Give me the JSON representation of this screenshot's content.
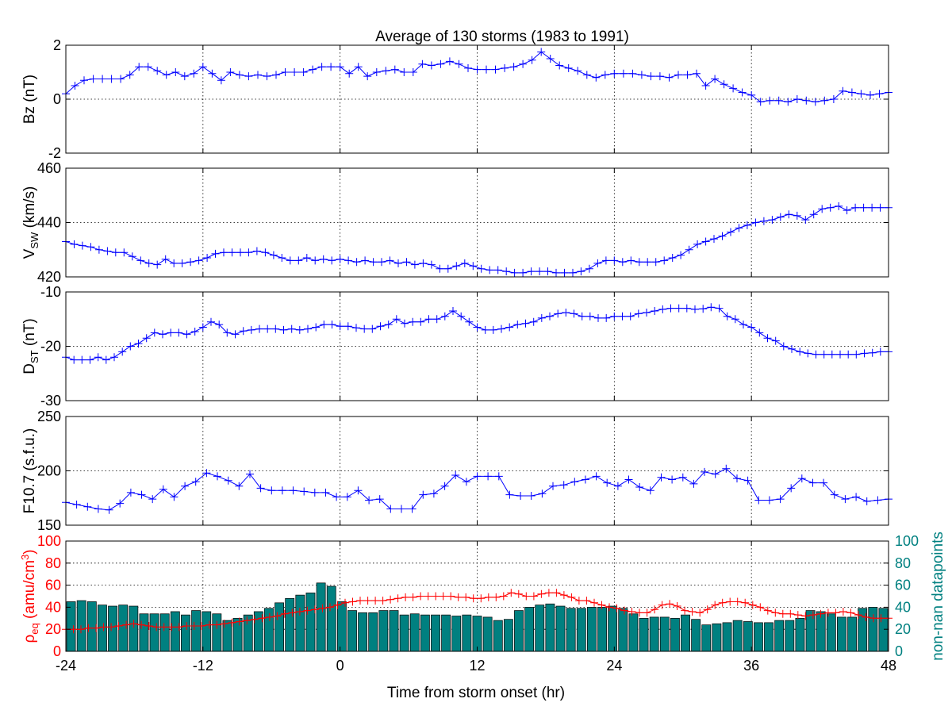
{
  "title": "Average of 130 storms  (1983 to 1991)",
  "xlabel": "Time from storm onset (hr)",
  "xticks": [
    -24,
    -12,
    0,
    12,
    24,
    36,
    48
  ],
  "colors": {
    "line": "#0000ff",
    "rho": "#ff0000",
    "bars": "#008080",
    "axis": "#000000",
    "grid": "#000000"
  },
  "chart_data": [
    {
      "type": "line",
      "ylabel": "Bz (nT)",
      "xlim": [
        -24,
        48
      ],
      "ylim": [
        -2,
        2
      ],
      "yticks": [
        -2,
        0,
        2
      ],
      "grid": true,
      "marker": "plus",
      "step_hr": 1,
      "x_start": -24,
      "values": [
        0.2,
        0.5,
        0.7,
        0.75,
        0.75,
        0.75,
        0.75,
        0.9,
        1.2,
        1.2,
        1.05,
        0.9,
        1.0,
        0.85,
        0.95,
        1.2,
        0.95,
        0.7,
        1.0,
        0.9,
        0.85,
        0.9,
        0.85,
        0.9,
        1.0,
        1.0,
        1.0,
        1.1,
        1.2,
        1.2,
        1.2,
        0.95,
        1.2,
        0.85,
        1.0,
        1.05,
        1.1,
        1.0,
        1.0,
        1.3,
        1.25,
        1.3,
        1.4,
        1.3,
        1.15,
        1.1,
        1.1,
        1.1,
        1.15,
        1.2,
        1.3,
        1.45,
        1.75,
        1.5,
        1.25,
        1.15,
        1.05,
        0.9,
        0.8,
        0.9,
        0.95,
        0.95,
        0.95,
        0.9,
        0.85,
        0.85,
        0.8,
        0.9,
        0.9,
        0.95,
        0.5,
        0.75,
        0.55,
        0.4,
        0.25,
        0.15,
        -0.1,
        -0.05,
        -0.05,
        -0.1,
        0.0,
        -0.05,
        -0.1,
        -0.05,
        0.0,
        0.3,
        0.25,
        0.2,
        0.15,
        0.2,
        0.25
      ]
    },
    {
      "type": "line",
      "ylabel": "V",
      "ylabel_sub": "SW",
      "ylabel_rest": " (km/s)",
      "xlim": [
        -24,
        48
      ],
      "ylim": [
        420,
        460
      ],
      "yticks": [
        420,
        440,
        460
      ],
      "grid": true,
      "marker": "plus",
      "step_hr": 1,
      "x_start": -24,
      "values": [
        433,
        432,
        431.5,
        431,
        430,
        429.5,
        429,
        429,
        427.5,
        426,
        425,
        424.5,
        426.5,
        425,
        425,
        425.5,
        426,
        427,
        428.5,
        429,
        429,
        429,
        429,
        429.5,
        429,
        428,
        427,
        426,
        426,
        427,
        426,
        426.5,
        426,
        426.5,
        426,
        425.5,
        426,
        425.5,
        425.5,
        426,
        425,
        425.5,
        424.5,
        425,
        424.5,
        423,
        423,
        424,
        425,
        424,
        423,
        422.5,
        422.5,
        422,
        421.5,
        421.5,
        422,
        422,
        422,
        421.5,
        421.5,
        421.5,
        422,
        423,
        425,
        426,
        426,
        425.5,
        426,
        425.5,
        425.5,
        425.5,
        426,
        427,
        428,
        430,
        432,
        433,
        434,
        435,
        436.5,
        438,
        439,
        440,
        440.5,
        441,
        442,
        443,
        442.5,
        441,
        443,
        445,
        445.5,
        446,
        444.5,
        445.5,
        445.5,
        445.5,
        445.5,
        445.5
      ]
    },
    {
      "type": "line",
      "ylabel": "D",
      "ylabel_sub": "ST",
      "ylabel_rest": " (nT)",
      "xlim": [
        -24,
        48
      ],
      "ylim": [
        -30,
        -10
      ],
      "yticks": [
        -30,
        -20,
        -10
      ],
      "grid": true,
      "marker": "plus",
      "step_hr": 1,
      "x_start": -24,
      "values": [
        -22,
        -22.5,
        -22.5,
        -22.5,
        -22,
        -22.5,
        -22,
        -21,
        -20,
        -19.5,
        -18.5,
        -17.5,
        -17.8,
        -17.5,
        -17.5,
        -17.8,
        -17.3,
        -16.5,
        -15.5,
        -16,
        -17.5,
        -17.8,
        -17.2,
        -17,
        -16.8,
        -16.8,
        -16.8,
        -17,
        -16.8,
        -17,
        -16.8,
        -16.5,
        -16,
        -16,
        -16.3,
        -16.3,
        -16.6,
        -16.8,
        -16.8,
        -16.3,
        -16,
        -15,
        -15.8,
        -15.5,
        -15.5,
        -15,
        -15,
        -14.5,
        -13.5,
        -14.5,
        -15.5,
        -16.5,
        -17,
        -17,
        -16.8,
        -16.5,
        -16,
        -15.8,
        -15.5,
        -14.8,
        -14.5,
        -14,
        -13.8,
        -14,
        -14.5,
        -14.5,
        -14.8,
        -14.8,
        -14.5,
        -14.5,
        -14.5,
        -14,
        -13.8,
        -13.5,
        -13.2,
        -13,
        -13,
        -13,
        -13.2,
        -13.1,
        -12.8,
        -13,
        -14.5,
        -15,
        -16,
        -16.5,
        -17.5,
        -18.5,
        -19,
        -20,
        -20.5,
        -21,
        -21.3,
        -21.5,
        -21.5,
        -21.5,
        -21.5,
        -21.5,
        -21.5,
        -21.3,
        -21.2,
        -21,
        -21
      ]
    },
    {
      "type": "line",
      "ylabel": "F10.7 (s.f.u.)",
      "xlim": [
        -24,
        48
      ],
      "ylim": [
        150,
        250
      ],
      "yticks": [
        150,
        200,
        250
      ],
      "grid": true,
      "marker": "plus",
      "step_hr": 1,
      "x_start": -24,
      "values": [
        171,
        169,
        167,
        165,
        164,
        170,
        180,
        178,
        174,
        183,
        176,
        186,
        190,
        198,
        195,
        191,
        186,
        197,
        184,
        182,
        182,
        182,
        181,
        180,
        180,
        176,
        176,
        182,
        173,
        174,
        165,
        165,
        165,
        178,
        179,
        186,
        196,
        190,
        195,
        195,
        195,
        178,
        177,
        177,
        179,
        186,
        187,
        190,
        192,
        195,
        189,
        186,
        192,
        185,
        182,
        194,
        192,
        194,
        188,
        199,
        197,
        202,
        193,
        191,
        173,
        173,
        174,
        184,
        193,
        189,
        189,
        178,
        174,
        176,
        172,
        173,
        174
      ]
    },
    {
      "type": "bar+line",
      "ylabel": "ρ",
      "ylabel_sub": "eq",
      "ylabel_rest": " (amu/cm",
      "ylabel_sup": "3",
      "ylabel_end": ")",
      "ylabel_right": "non-nan datapoints",
      "xlim": [
        -24,
        48
      ],
      "ylim": [
        0,
        100
      ],
      "yticks": [
        0,
        20,
        40,
        60,
        80,
        100
      ],
      "grid": true,
      "step_hr": 1,
      "x_start": -24,
      "series": [
        {
          "axis": "left",
          "kind": "line",
          "marker": "plus",
          "values": [
            20,
            20,
            20,
            21,
            21,
            22,
            22,
            23,
            24,
            25,
            24,
            23,
            22,
            22,
            22,
            22,
            23,
            23,
            23,
            24,
            24,
            25,
            26,
            27,
            28,
            29,
            30,
            31,
            32,
            34,
            35,
            36,
            37,
            38,
            39,
            40,
            42,
            44,
            45,
            46,
            46,
            46,
            46,
            47,
            48,
            49,
            49,
            50,
            50,
            50,
            50,
            50,
            49,
            49,
            48,
            48,
            49,
            49,
            50,
            53,
            52,
            50,
            50,
            52,
            53,
            53,
            51,
            49,
            46,
            46,
            44,
            42,
            40,
            39,
            37,
            36,
            35,
            35,
            38,
            42,
            43,
            41,
            37,
            36,
            35,
            38,
            42,
            44,
            45,
            45,
            44,
            42,
            40,
            37,
            35,
            34,
            34,
            33,
            32,
            33,
            34,
            35,
            35,
            36,
            35,
            33,
            31,
            30,
            30,
            30
          ]
        },
        {
          "axis": "right",
          "kind": "bar",
          "values": [
            45,
            46,
            45,
            42,
            41,
            42,
            41,
            34,
            34,
            34,
            36,
            33,
            37,
            36,
            34,
            28,
            30,
            33,
            36,
            39,
            44,
            48,
            51,
            53,
            62,
            59,
            45,
            37,
            35,
            35,
            37,
            37,
            33,
            34,
            33,
            33,
            33,
            32,
            33,
            32,
            31,
            28,
            29,
            37,
            40,
            42,
            43,
            41,
            39,
            39,
            40,
            40,
            41,
            39,
            34,
            30,
            31,
            31,
            30,
            33,
            29,
            24,
            25,
            26,
            28,
            27,
            26,
            26,
            28,
            28,
            30,
            37,
            36,
            34,
            31,
            31,
            39,
            40,
            39
          ]
        }
      ]
    }
  ]
}
